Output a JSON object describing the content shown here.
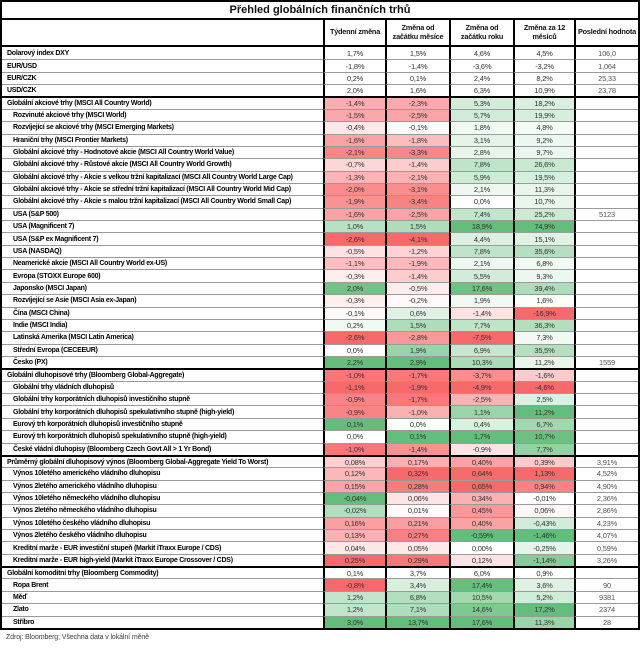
{
  "title": "Přehled globálních finančních trhů",
  "footer": "Zdroj: Bloomberg; Všechna data v lokální měně",
  "colors": {
    "positive": "#63be7b",
    "negative": "#f8696b",
    "neutral": "#ffffff",
    "grid_line": "#9a9a9a",
    "block_border": "#000000"
  },
  "table": {
    "columns": [
      "Týdenní změna",
      "Změna od začátku měsíce",
      "Změna od začátku roku",
      "Změna za 12 měsíců",
      "Poslední hodnota"
    ],
    "rows": [
      {
        "label": "Dolarový index DXY",
        "indent": 0,
        "block": "fx",
        "mode": "none",
        "start": false,
        "changes": [
          "1,7%",
          "1,5%",
          "4,6%",
          "4,5%"
        ],
        "last": "106,0"
      },
      {
        "label": "EUR/USD",
        "indent": 0,
        "block": "fx",
        "mode": "none",
        "start": false,
        "changes": [
          "-1,8%",
          "-1,4%",
          "-3,6%",
          "-3,2%"
        ],
        "last": "1,064"
      },
      {
        "label": "EUR/CZK",
        "indent": 0,
        "block": "fx",
        "mode": "none",
        "start": false,
        "changes": [
          "0,2%",
          "0,1%",
          "2,4%",
          "8,2%"
        ],
        "last": "25,33"
      },
      {
        "label": "USD/CZK",
        "indent": 0,
        "block": "fx",
        "mode": "none",
        "start": false,
        "changes": [
          "2,0%",
          "1,6%",
          "6,3%",
          "10,9%"
        ],
        "last": "23,78"
      },
      {
        "label": "Globální akciové trhy (MSCI All Country World)",
        "indent": 0,
        "block": "equity",
        "mode": "pct",
        "start": true,
        "changes": [
          "-1,4%",
          "-2,3%",
          "5,3%",
          "18,2%"
        ],
        "last": ""
      },
      {
        "label": "Rozvinuté akciové trhy (MSCI World)",
        "indent": 1,
        "block": "equity",
        "mode": "pct",
        "start": false,
        "changes": [
          "-1,5%",
          "-2,5%",
          "5,7%",
          "19,9%"
        ],
        "last": ""
      },
      {
        "label": "Rozvíjející se akciové trhy (MSCI Emerging Markets)",
        "indent": 1,
        "block": "equity",
        "mode": "pct",
        "start": false,
        "changes": [
          "-0,4%",
          "-0,1%",
          "1,8%",
          "4,8%"
        ],
        "last": ""
      },
      {
        "label": "Hraniční trhy (MSCI Frontier Markets)",
        "indent": 1,
        "block": "equity",
        "mode": "pct",
        "start": false,
        "changes": [
          "-1,6%",
          "-1,8%",
          "3,1%",
          "9,2%"
        ],
        "last": ""
      },
      {
        "label": "Globální akciové trhy - Hodnotové akcie (MSCI All Country World Value)",
        "indent": 1,
        "block": "equity",
        "mode": "pct",
        "start": false,
        "changes": [
          "-2,1%",
          "-3,3%",
          "2,8%",
          "9,7%"
        ],
        "last": ""
      },
      {
        "label": "Globální akciové trhy - Růstové akcie (MSCI All Country World Growth)",
        "indent": 1,
        "block": "equity",
        "mode": "pct",
        "start": false,
        "changes": [
          "-0,7%",
          "-1,4%",
          "7,8%",
          "26,6%"
        ],
        "last": ""
      },
      {
        "label": "Globální akciové trhy - Akcie s velkou tržní kapitalizací (MSCI All Country World Large Cap)",
        "indent": 1,
        "block": "equity",
        "mode": "pct",
        "start": false,
        "changes": [
          "-1,3%",
          "-2,1%",
          "5,9%",
          "19,5%"
        ],
        "last": ""
      },
      {
        "label": "Globální akciové trhy - Akcie se střední tržní kapitalizací (MSCI All Country World Mid Cap)",
        "indent": 1,
        "block": "equity",
        "mode": "pct",
        "start": false,
        "changes": [
          "-2,0%",
          "-3,1%",
          "2,1%",
          "11,3%"
        ],
        "last": ""
      },
      {
        "label": "Globální akciové trhy - Akcie s malou tržní kapitalizací (MSCI All Country World Small Cap)",
        "indent": 1,
        "block": "equity",
        "mode": "pct",
        "start": false,
        "changes": [
          "-1,9%",
          "-3,4%",
          "0,0%",
          "10,7%"
        ],
        "last": ""
      },
      {
        "label": "USA (S&P 500)",
        "indent": 1,
        "block": "equity",
        "mode": "pct",
        "start": false,
        "changes": [
          "-1,6%",
          "-2,5%",
          "7,4%",
          "25,2%"
        ],
        "last": "5123"
      },
      {
        "label": "USA (Magnificent 7)",
        "indent": 1,
        "block": "equity",
        "mode": "pct",
        "start": false,
        "changes": [
          "1,0%",
          "1,5%",
          "18,9%",
          "74,9%"
        ],
        "last": ""
      },
      {
        "label": "USA (S&P ex Magnificent 7)",
        "indent": 1,
        "block": "equity",
        "mode": "pct",
        "start": false,
        "changes": [
          "-2,6%",
          "-4,1%",
          "4,4%",
          "15,1%"
        ],
        "last": ""
      },
      {
        "label": "USA (NASDAQ)",
        "indent": 1,
        "block": "equity",
        "mode": "pct",
        "start": false,
        "changes": [
          "-0,5%",
          "-1,2%",
          "7,8%",
          "35,6%"
        ],
        "last": ""
      },
      {
        "label": "Neamerické akcie (MSCI All Country World ex-US)",
        "indent": 1,
        "block": "equity",
        "mode": "pct",
        "start": false,
        "changes": [
          "-1,1%",
          "-1,9%",
          "2,1%",
          "6,8%"
        ],
        "last": ""
      },
      {
        "label": "Evropa (STOXX Europe 600)",
        "indent": 1,
        "block": "equity",
        "mode": "pct",
        "start": false,
        "changes": [
          "-0,3%",
          "-1,4%",
          "5,5%",
          "9,3%"
        ],
        "last": ""
      },
      {
        "label": "Japonsko (MSCI Japan)",
        "indent": 1,
        "block": "equity",
        "mode": "pct",
        "start": false,
        "changes": [
          "2,0%",
          "-0,5%",
          "17,6%",
          "39,4%"
        ],
        "last": ""
      },
      {
        "label": "Rozvíjející se Asie (MSCI Asia ex-Japan)",
        "indent": 1,
        "block": "equity",
        "mode": "pct",
        "start": false,
        "changes": [
          "-0,3%",
          "-0,2%",
          "1,9%",
          "1,6%"
        ],
        "last": ""
      },
      {
        "label": "Čína (MSCI China)",
        "indent": 1,
        "block": "equity",
        "mode": "pct",
        "start": false,
        "changes": [
          "-0,1%",
          "0,6%",
          "-1,4%",
          "-16,9%"
        ],
        "last": ""
      },
      {
        "label": "Indie (MSCI India)",
        "indent": 1,
        "block": "equity",
        "mode": "pct",
        "start": false,
        "changes": [
          "0,2%",
          "1,5%",
          "7,7%",
          "36,3%"
        ],
        "last": ""
      },
      {
        "label": "Latinská Amerika (MSCI Latin America)",
        "indent": 1,
        "block": "equity",
        "mode": "pct",
        "start": false,
        "changes": [
          "-2,6%",
          "-2,8%",
          "-7,5%",
          "7,3%"
        ],
        "last": ""
      },
      {
        "label": "Střední Evropa (CECEEUR)",
        "indent": 1,
        "block": "equity",
        "mode": "pct",
        "start": false,
        "changes": [
          "0,0%",
          "1,9%",
          "6,9%",
          "35,5%"
        ],
        "last": ""
      },
      {
        "label": "Česko (PX)",
        "indent": 1,
        "block": "equity",
        "mode": "pct",
        "start": false,
        "changes": [
          "2,2%",
          "2,9%",
          "10,3%",
          "11,2%"
        ],
        "last": "1559"
      },
      {
        "label": "Globální dluhopisové trhy (Bloomberg Global-Aggregate)",
        "indent": 0,
        "block": "bond",
        "mode": "pct",
        "start": true,
        "changes": [
          "-1,0%",
          "-1,7%",
          "-3,7%",
          "-1,6%"
        ],
        "last": ""
      },
      {
        "label": "Globální trhy vládních dluhopisů",
        "indent": 1,
        "block": "bond",
        "mode": "pct",
        "start": false,
        "changes": [
          "-1,1%",
          "-1,9%",
          "-4,9%",
          "-4,6%"
        ],
        "last": ""
      },
      {
        "label": "Globální trhy korporátních dluhopisů investičního stupně",
        "indent": 1,
        "block": "bond",
        "mode": "pct",
        "start": false,
        "changes": [
          "-0,9%",
          "-1,7%",
          "-2,5%",
          "2,5%"
        ],
        "last": ""
      },
      {
        "label": "Globální trhy korporátních dluhopisů spekulativního stupně (high-yield)",
        "indent": 1,
        "block": "bond",
        "mode": "pct",
        "start": false,
        "changes": [
          "-0,9%",
          "-1,0%",
          "1,1%",
          "11,2%"
        ],
        "last": ""
      },
      {
        "label": "Eurový trh korporátních dluhopisů investičního stupně",
        "indent": 1,
        "block": "bond",
        "mode": "pct",
        "start": false,
        "changes": [
          "0,1%",
          "0,0%",
          "0,4%",
          "6,7%"
        ],
        "last": ""
      },
      {
        "label": "Eurový trh korporátních dluhopisů spekulativního stupně (high-yield)",
        "indent": 1,
        "block": "bond",
        "mode": "pct",
        "start": false,
        "changes": [
          "0,0%",
          "0,1%",
          "1,7%",
          "10,7%"
        ],
        "last": ""
      },
      {
        "label": "České vládní dluhopisy (Bloomberg Czech Govt All > 1 Yr Bond)",
        "indent": 1,
        "block": "bond",
        "mode": "pct",
        "start": false,
        "changes": [
          "-1,0%",
          "-1,4%",
          "-0,9%",
          "7,7%"
        ],
        "last": ""
      },
      {
        "label": "Průměrný globální dluhopisový výnos (Bloomberg Global-Aggregate Yield To Worst)",
        "indent": 0,
        "block": "yield",
        "mode": "inv",
        "start": true,
        "changes": [
          "0,08%",
          "0,17%",
          "0,40%",
          "0,39%"
        ],
        "last": "3,91%"
      },
      {
        "label": "Výnos 10letého amerického vládního dluhopisu",
        "indent": 1,
        "block": "yield",
        "mode": "inv",
        "start": false,
        "changes": [
          "0,12%",
          "0,32%",
          "0,64%",
          "1,13%"
        ],
        "last": "4,52%"
      },
      {
        "label": "Výnos 2letého amerického vládního dluhopisu",
        "indent": 1,
        "block": "yield",
        "mode": "inv",
        "start": false,
        "changes": [
          "0,15%",
          "0,28%",
          "0,65%",
          "0,94%"
        ],
        "last": "4,90%"
      },
      {
        "label": "Výnos 10letého německého vládního dluhopisu",
        "indent": 1,
        "block": "yield",
        "mode": "inv",
        "start": false,
        "changes": [
          "-0,04%",
          "0,06%",
          "0,34%",
          "-0,01%"
        ],
        "last": "2,36%"
      },
      {
        "label": "Výnos 2letého německého vládního dluhopisu",
        "indent": 1,
        "block": "yield",
        "mode": "inv",
        "start": false,
        "changes": [
          "-0,02%",
          "0,01%",
          "0,45%",
          "0,06%"
        ],
        "last": "2,86%"
      },
      {
        "label": "Výnos 10letého českého vládního dluhopisu",
        "indent": 1,
        "block": "yield",
        "mode": "inv",
        "start": false,
        "changes": [
          "0,16%",
          "0,21%",
          "0,40%",
          "-0,43%"
        ],
        "last": "4,23%"
      },
      {
        "label": "Výnos 2letého českého vládního dluhopisu",
        "indent": 1,
        "block": "yield",
        "mode": "inv",
        "start": false,
        "changes": [
          "0,13%",
          "0,27%",
          "-0,59%",
          "-1,46%"
        ],
        "last": "4,07%"
      },
      {
        "label": "Kreditní marže - EUR investiční stupeň (Markit iTraxx Europe / CDS)",
        "indent": 1,
        "block": "yield",
        "mode": "inv",
        "start": false,
        "changes": [
          "0,04%",
          "0,05%",
          "0,00%",
          "-0,25%"
        ],
        "last": "0,59%"
      },
      {
        "label": "Kreditní marže - EUR high-yield (Markit iTraxx Europe Crossover / CDS)",
        "indent": 1,
        "block": "yield",
        "mode": "inv",
        "start": false,
        "changes": [
          "0,25%",
          "0,29%",
          "0,12%",
          "-1,14%"
        ],
        "last": "3,26%"
      },
      {
        "label": "Globální komoditní trhy (Bloomberg Commodity)",
        "indent": 0,
        "block": "commodity",
        "mode": "none",
        "start": true,
        "changes": [
          "0,1%",
          "3,7%",
          "6,0%",
          "0,9%"
        ],
        "last": ""
      },
      {
        "label": "Ropa Brent",
        "indent": 1,
        "block": "commodity",
        "mode": "pct",
        "start": false,
        "changes": [
          "-0,8%",
          "3,4%",
          "17,4%",
          "3,6%"
        ],
        "last": "90"
      },
      {
        "label": "Měď",
        "indent": 1,
        "block": "commodity",
        "mode": "pct",
        "start": false,
        "changes": [
          "1,2%",
          "6,8%",
          "10,5%",
          "5,2%"
        ],
        "last": "9381"
      },
      {
        "label": "Zlato",
        "indent": 1,
        "block": "commodity",
        "mode": "pct",
        "start": false,
        "changes": [
          "1,2%",
          "7,1%",
          "14,6%",
          "17,2%"
        ],
        "last": "2374"
      },
      {
        "label": "Stříbro",
        "indent": 1,
        "block": "commodity",
        "mode": "pct",
        "start": false,
        "changes": [
          "3,0%",
          "13,7%",
          "17,6%",
          "11,3%"
        ],
        "last": "28"
      }
    ]
  }
}
